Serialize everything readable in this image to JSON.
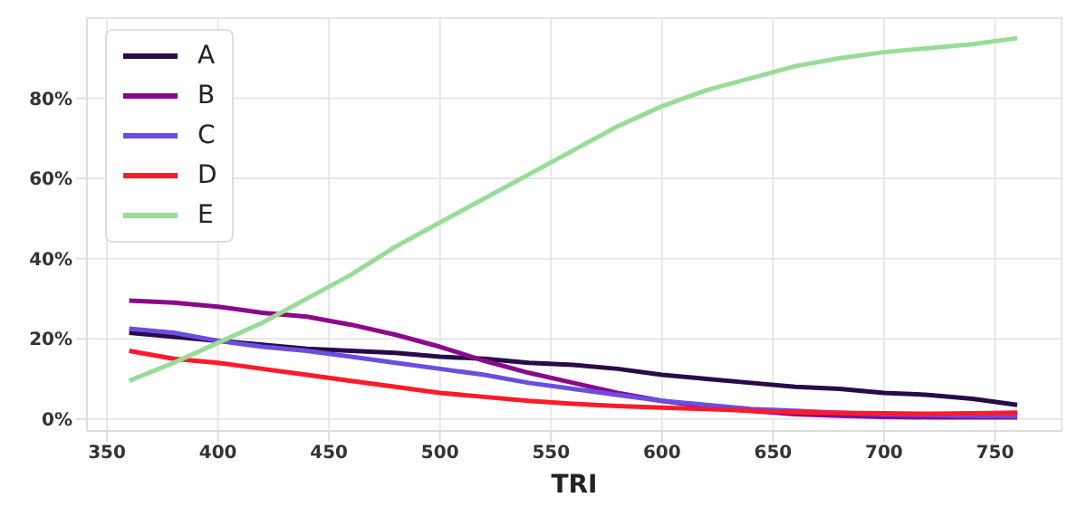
{
  "chart_data": {
    "type": "line",
    "xlabel": "TRI",
    "x": [
      360,
      380,
      400,
      420,
      440,
      460,
      480,
      500,
      520,
      540,
      560,
      580,
      600,
      620,
      640,
      660,
      680,
      700,
      720,
      740,
      760
    ],
    "series": [
      {
        "name": "A",
        "color": "#2a0a4a",
        "values": [
          21.5,
          20.5,
          19.5,
          18.5,
          17.5,
          17,
          16.5,
          15.5,
          15,
          14,
          13.5,
          12.5,
          11,
          10,
          9,
          8,
          7.5,
          6.5,
          6,
          5,
          3.5
        ]
      },
      {
        "name": "B",
        "color": "#8b0a8b",
        "values": [
          29.5,
          29,
          28,
          26.5,
          25.5,
          23.5,
          21,
          18,
          14.5,
          11.5,
          9,
          6.5,
          4.5,
          3,
          2,
          1.2,
          0.8,
          0.5,
          0.4,
          0.4,
          0.4
        ]
      },
      {
        "name": "C",
        "color": "#6a4ee0",
        "values": [
          22.5,
          21.5,
          19.5,
          18,
          17,
          15.5,
          14,
          12.5,
          11,
          9,
          7.5,
          6,
          4.5,
          3.5,
          2.5,
          2,
          1.5,
          1.2,
          1,
          0.8,
          0.7
        ]
      },
      {
        "name": "D",
        "color": "#ff1a2a",
        "values": [
          17,
          15,
          14,
          12.5,
          11,
          9.5,
          8,
          6.5,
          5.5,
          4.5,
          3.8,
          3.2,
          2.8,
          2.5,
          2,
          1.7,
          1.5,
          1.4,
          1.3,
          1.4,
          1.6
        ]
      },
      {
        "name": "E",
        "color": "#98dc98",
        "values": [
          9.5,
          14,
          19,
          24,
          30,
          36,
          43,
          49,
          55,
          61,
          67,
          73,
          78,
          82,
          85,
          88,
          90,
          91.5,
          92.5,
          93.5,
          95
        ]
      }
    ],
    "xlim": [
      341,
      780
    ],
    "xticks": [
      350,
      400,
      450,
      500,
      550,
      600,
      650,
      700,
      750
    ],
    "ylim": [
      -3,
      100
    ],
    "yticks": [
      {
        "value": 0,
        "label": "0%"
      },
      {
        "value": 20,
        "label": "20%"
      },
      {
        "value": 40,
        "label": "40%"
      },
      {
        "value": 60,
        "label": "60%"
      },
      {
        "value": 80,
        "label": "80%"
      }
    ],
    "grid": true,
    "legend": "top left",
    "marker": "none",
    "line_style": "solid"
  }
}
